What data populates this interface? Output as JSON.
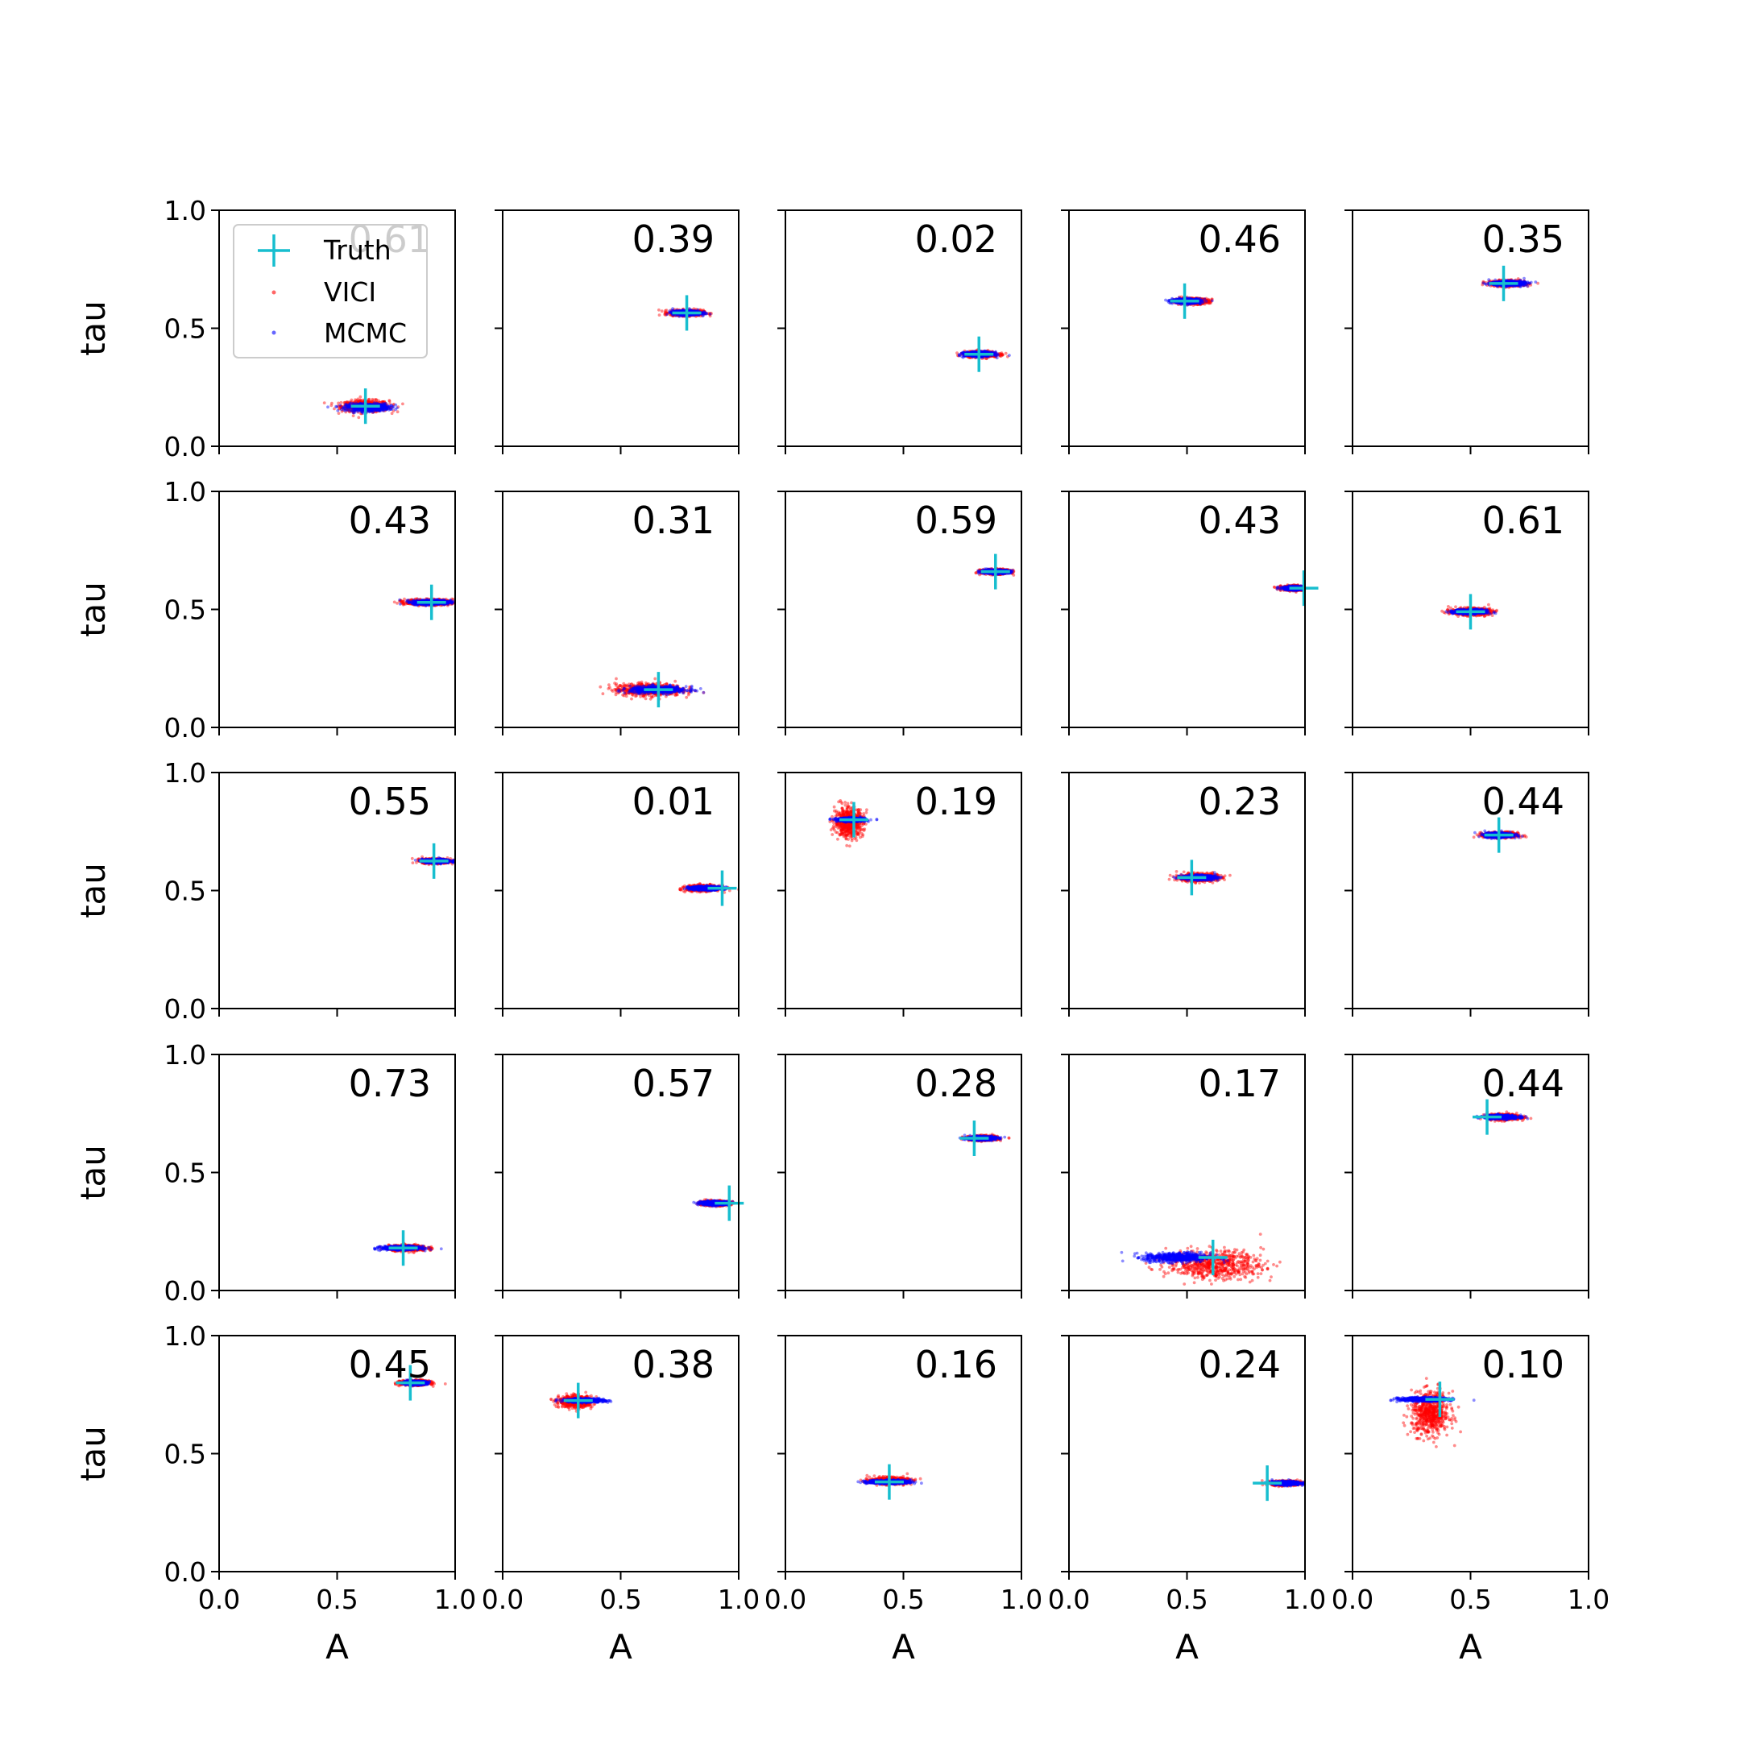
{
  "figure": {
    "background": "#ffffff",
    "colors": {
      "truth": "#17becf",
      "vici": "#ff0000",
      "mcmc": "#0000ff",
      "axes": "#000000"
    },
    "legend": {
      "location": "top-left of first panel",
      "entries": [
        "Truth",
        "VICI",
        "MCMC"
      ]
    }
  },
  "chart_data": [
    {
      "type": "scatter",
      "row": 0,
      "col": 0,
      "annotation": "0.61",
      "truth": {
        "A": 0.62,
        "tau": 0.17
      },
      "vici": {
        "A": 0.62,
        "tau": 0.17,
        "sA": 0.05,
        "sTau": 0.012
      },
      "mcmc": {
        "A": 0.63,
        "tau": 0.165,
        "sA": 0.045,
        "sTau": 0.008
      },
      "xlabel": "",
      "ylabel": "tau",
      "xlim": [
        0,
        1
      ],
      "ylim": [
        0,
        1
      ],
      "xticks": [
        "",
        "",
        ""
      ],
      "yticks": [
        "0.0",
        "0.5",
        "1.0"
      ]
    },
    {
      "type": "scatter",
      "row": 0,
      "col": 1,
      "annotation": "0.39",
      "truth": {
        "A": 0.78,
        "tau": 0.565
      },
      "vici": {
        "A": 0.78,
        "tau": 0.565,
        "sA": 0.035,
        "sTau": 0.006
      },
      "mcmc": {
        "A": 0.78,
        "tau": 0.565,
        "sA": 0.03,
        "sTau": 0.005
      },
      "xlabel": "",
      "ylabel": "",
      "xlim": [
        0,
        1
      ],
      "ylim": [
        0,
        1
      ],
      "xticks": [
        "",
        "",
        ""
      ],
      "yticks": [
        "",
        "",
        ""
      ]
    },
    {
      "type": "scatter",
      "row": 0,
      "col": 2,
      "annotation": "0.02",
      "truth": {
        "A": 0.82,
        "tau": 0.39
      },
      "vici": {
        "A": 0.83,
        "tau": 0.39,
        "sA": 0.035,
        "sTau": 0.006
      },
      "mcmc": {
        "A": 0.82,
        "tau": 0.39,
        "sA": 0.03,
        "sTau": 0.005
      },
      "xlabel": "",
      "ylabel": "",
      "xlim": [
        0,
        1
      ],
      "ylim": [
        0,
        1
      ],
      "xticks": [
        "",
        "",
        ""
      ],
      "yticks": [
        "",
        "",
        ""
      ]
    },
    {
      "type": "scatter",
      "row": 0,
      "col": 3,
      "annotation": "0.46",
      "truth": {
        "A": 0.49,
        "tau": 0.615
      },
      "vici": {
        "A": 0.52,
        "tau": 0.615,
        "sA": 0.035,
        "sTau": 0.006
      },
      "mcmc": {
        "A": 0.5,
        "tau": 0.615,
        "sA": 0.03,
        "sTau": 0.005
      },
      "xlabel": "",
      "ylabel": "",
      "xlim": [
        0,
        1
      ],
      "ylim": [
        0,
        1
      ],
      "xticks": [
        "",
        "",
        ""
      ],
      "yticks": [
        "",
        "",
        ""
      ]
    },
    {
      "type": "scatter",
      "row": 0,
      "col": 4,
      "annotation": "0.35",
      "truth": {
        "A": 0.64,
        "tau": 0.69
      },
      "vici": {
        "A": 0.66,
        "tau": 0.69,
        "sA": 0.035,
        "sTau": 0.006
      },
      "mcmc": {
        "A": 0.66,
        "tau": 0.69,
        "sA": 0.035,
        "sTau": 0.005
      },
      "xlabel": "",
      "ylabel": "",
      "xlim": [
        0,
        1
      ],
      "ylim": [
        0,
        1
      ],
      "xticks": [
        "",
        "",
        ""
      ],
      "yticks": [
        "",
        "",
        ""
      ]
    },
    {
      "type": "scatter",
      "row": 1,
      "col": 0,
      "annotation": "0.43",
      "truth": {
        "A": 0.9,
        "tau": 0.53
      },
      "vici": {
        "A": 0.89,
        "tau": 0.53,
        "sA": 0.05,
        "sTau": 0.006
      },
      "mcmc": {
        "A": 0.9,
        "tau": 0.53,
        "sA": 0.04,
        "sTau": 0.005
      },
      "xlabel": "",
      "ylabel": "tau",
      "xlim": [
        0,
        1
      ],
      "ylim": [
        0,
        1
      ],
      "xticks": [
        "",
        "",
        ""
      ],
      "yticks": [
        "0.0",
        "0.5",
        "1.0"
      ]
    },
    {
      "type": "scatter",
      "row": 1,
      "col": 1,
      "annotation": "0.31",
      "truth": {
        "A": 0.66,
        "tau": 0.16
      },
      "vici": {
        "A": 0.62,
        "tau": 0.16,
        "sA": 0.07,
        "sTau": 0.013
      },
      "mcmc": {
        "A": 0.66,
        "tau": 0.16,
        "sA": 0.06,
        "sTau": 0.007
      },
      "xlabel": "",
      "ylabel": "",
      "xlim": [
        0,
        1
      ],
      "ylim": [
        0,
        1
      ],
      "xticks": [
        "",
        "",
        ""
      ],
      "yticks": [
        "",
        "",
        ""
      ]
    },
    {
      "type": "scatter",
      "row": 1,
      "col": 2,
      "annotation": "0.59",
      "truth": {
        "A": 0.89,
        "tau": 0.66
      },
      "vici": {
        "A": 0.89,
        "tau": 0.66,
        "sA": 0.03,
        "sTau": 0.005
      },
      "mcmc": {
        "A": 0.89,
        "tau": 0.66,
        "sA": 0.03,
        "sTau": 0.004
      },
      "xlabel": "",
      "ylabel": "",
      "xlim": [
        0,
        1
      ],
      "ylim": [
        0,
        1
      ],
      "xticks": [
        "",
        "",
        ""
      ],
      "yticks": [
        "",
        "",
        ""
      ]
    },
    {
      "type": "scatter",
      "row": 1,
      "col": 3,
      "annotation": "0.43",
      "truth": {
        "A": 0.995,
        "tau": 0.59
      },
      "vici": {
        "A": 0.96,
        "tau": 0.59,
        "sA": 0.03,
        "sTau": 0.005
      },
      "mcmc": {
        "A": 0.96,
        "tau": 0.59,
        "sA": 0.025,
        "sTau": 0.004
      },
      "xlabel": "",
      "ylabel": "",
      "xlim": [
        0,
        1
      ],
      "ylim": [
        0,
        1
      ],
      "xticks": [
        "",
        "",
        ""
      ],
      "yticks": [
        "",
        "",
        ""
      ]
    },
    {
      "type": "scatter",
      "row": 1,
      "col": 4,
      "annotation": "0.61",
      "truth": {
        "A": 0.5,
        "tau": 0.49
      },
      "vici": {
        "A": 0.5,
        "tau": 0.49,
        "sA": 0.04,
        "sTau": 0.007
      },
      "mcmc": {
        "A": 0.5,
        "tau": 0.49,
        "sA": 0.035,
        "sTau": 0.005
      },
      "xlabel": "",
      "ylabel": "",
      "xlim": [
        0,
        1
      ],
      "ylim": [
        0,
        1
      ],
      "xticks": [
        "",
        "",
        ""
      ],
      "yticks": [
        "",
        "",
        ""
      ]
    },
    {
      "type": "scatter",
      "row": 2,
      "col": 0,
      "annotation": "0.55",
      "truth": {
        "A": 0.91,
        "tau": 0.625
      },
      "vici": {
        "A": 0.92,
        "tau": 0.625,
        "sA": 0.03,
        "sTau": 0.005
      },
      "mcmc": {
        "A": 0.92,
        "tau": 0.625,
        "sA": 0.03,
        "sTau": 0.004
      },
      "xlabel": "",
      "ylabel": "tau",
      "xlim": [
        0,
        1
      ],
      "ylim": [
        0,
        1
      ],
      "xticks": [
        "",
        "",
        ""
      ],
      "yticks": [
        "0.0",
        "0.5",
        "1.0"
      ]
    },
    {
      "type": "scatter",
      "row": 2,
      "col": 1,
      "annotation": "0.01",
      "truth": {
        "A": 0.93,
        "tau": 0.51
      },
      "vici": {
        "A": 0.85,
        "tau": 0.51,
        "sA": 0.035,
        "sTau": 0.006
      },
      "mcmc": {
        "A": 0.86,
        "tau": 0.51,
        "sA": 0.035,
        "sTau": 0.004
      },
      "xlabel": "",
      "ylabel": "",
      "xlim": [
        0,
        1
      ],
      "ylim": [
        0,
        1
      ],
      "xticks": [
        "",
        "",
        ""
      ],
      "yticks": [
        "",
        "",
        ""
      ]
    },
    {
      "type": "scatter",
      "row": 2,
      "col": 2,
      "annotation": "0.19",
      "truth": {
        "A": 0.29,
        "tau": 0.8
      },
      "vici": {
        "A": 0.27,
        "tau": 0.79,
        "sA": 0.03,
        "sTau": 0.03
      },
      "mcmc": {
        "A": 0.28,
        "tau": 0.8,
        "sA": 0.03,
        "sTau": 0.004
      },
      "xlabel": "",
      "ylabel": "",
      "xlim": [
        0,
        1
      ],
      "ylim": [
        0,
        1
      ],
      "xticks": [
        "",
        "",
        ""
      ],
      "yticks": [
        "",
        "",
        ""
      ]
    },
    {
      "type": "scatter",
      "row": 2,
      "col": 3,
      "annotation": "0.23",
      "truth": {
        "A": 0.52,
        "tau": 0.555
      },
      "vici": {
        "A": 0.55,
        "tau": 0.555,
        "sA": 0.04,
        "sTau": 0.008
      },
      "mcmc": {
        "A": 0.55,
        "tau": 0.555,
        "sA": 0.035,
        "sTau": 0.005
      },
      "xlabel": "",
      "ylabel": "",
      "xlim": [
        0,
        1
      ],
      "ylim": [
        0,
        1
      ],
      "xticks": [
        "",
        "",
        ""
      ],
      "yticks": [
        "",
        "",
        ""
      ]
    },
    {
      "type": "scatter",
      "row": 2,
      "col": 4,
      "annotation": "0.44",
      "truth": {
        "A": 0.62,
        "tau": 0.735
      },
      "vici": {
        "A": 0.63,
        "tau": 0.735,
        "sA": 0.035,
        "sTau": 0.006
      },
      "mcmc": {
        "A": 0.62,
        "tau": 0.735,
        "sA": 0.03,
        "sTau": 0.005
      },
      "xlabel": "",
      "ylabel": "",
      "xlim": [
        0,
        1
      ],
      "ylim": [
        0,
        1
      ],
      "xticks": [
        "",
        "",
        ""
      ],
      "yticks": [
        "",
        "",
        ""
      ]
    },
    {
      "type": "scatter",
      "row": 3,
      "col": 0,
      "annotation": "0.73",
      "truth": {
        "A": 0.78,
        "tau": 0.18
      },
      "vici": {
        "A": 0.8,
        "tau": 0.18,
        "sA": 0.04,
        "sTau": 0.006
      },
      "mcmc": {
        "A": 0.77,
        "tau": 0.18,
        "sA": 0.04,
        "sTau": 0.004
      },
      "xlabel": "",
      "ylabel": "tau",
      "xlim": [
        0,
        1
      ],
      "ylim": [
        0,
        1
      ],
      "xticks": [
        "",
        "",
        ""
      ],
      "yticks": [
        "0.0",
        "0.5",
        "1.0"
      ]
    },
    {
      "type": "scatter",
      "row": 3,
      "col": 1,
      "annotation": "0.57",
      "truth": {
        "A": 0.96,
        "tau": 0.37
      },
      "vici": {
        "A": 0.9,
        "tau": 0.37,
        "sA": 0.03,
        "sTau": 0.005
      },
      "mcmc": {
        "A": 0.9,
        "tau": 0.37,
        "sA": 0.03,
        "sTau": 0.004
      },
      "xlabel": "",
      "ylabel": "",
      "xlim": [
        0,
        1
      ],
      "ylim": [
        0,
        1
      ],
      "xticks": [
        "",
        "",
        ""
      ],
      "yticks": [
        "",
        "",
        ""
      ]
    },
    {
      "type": "scatter",
      "row": 3,
      "col": 2,
      "annotation": "0.28",
      "truth": {
        "A": 0.8,
        "tau": 0.645
      },
      "vici": {
        "A": 0.84,
        "tau": 0.645,
        "sA": 0.03,
        "sTau": 0.005
      },
      "mcmc": {
        "A": 0.83,
        "tau": 0.645,
        "sA": 0.03,
        "sTau": 0.004
      },
      "xlabel": "",
      "ylabel": "",
      "xlim": [
        0,
        1
      ],
      "ylim": [
        0,
        1
      ],
      "xticks": [
        "",
        "",
        ""
      ],
      "yticks": [
        "",
        "",
        ""
      ]
    },
    {
      "type": "scatter",
      "row": 3,
      "col": 3,
      "annotation": "0.17",
      "truth": {
        "A": 0.61,
        "tau": 0.14
      },
      "vici": {
        "A": 0.62,
        "tau": 0.11,
        "sA": 0.1,
        "sTau": 0.03
      },
      "mcmc": {
        "A": 0.46,
        "tau": 0.14,
        "sA": 0.07,
        "sTau": 0.01
      },
      "xlabel": "",
      "ylabel": "",
      "xlim": [
        0,
        1
      ],
      "ylim": [
        0,
        1
      ],
      "xticks": [
        "",
        "",
        ""
      ],
      "yticks": [
        "",
        "",
        ""
      ]
    },
    {
      "type": "scatter",
      "row": 3,
      "col": 4,
      "annotation": "0.44",
      "truth": {
        "A": 0.57,
        "tau": 0.735
      },
      "vici": {
        "A": 0.64,
        "tau": 0.735,
        "sA": 0.035,
        "sTau": 0.006
      },
      "mcmc": {
        "A": 0.63,
        "tau": 0.735,
        "sA": 0.035,
        "sTau": 0.004
      },
      "xlabel": "",
      "ylabel": "",
      "xlim": [
        0,
        1
      ],
      "ylim": [
        0,
        1
      ],
      "xticks": [
        "",
        "",
        ""
      ],
      "yticks": [
        "",
        "",
        ""
      ]
    },
    {
      "type": "scatter",
      "row": 4,
      "col": 0,
      "annotation": "0.45",
      "truth": {
        "A": 0.81,
        "tau": 0.8
      },
      "vici": {
        "A": 0.83,
        "tau": 0.8,
        "sA": 0.03,
        "sTau": 0.005
      },
      "mcmc": {
        "A": 0.83,
        "tau": 0.8,
        "sA": 0.025,
        "sTau": 0.004
      },
      "xlabel": "A",
      "ylabel": "tau",
      "xlim": [
        0,
        1
      ],
      "ylim": [
        0,
        1
      ],
      "xticks": [
        "0.0",
        "0.5",
        "1.0"
      ],
      "yticks": [
        "0.0",
        "0.5",
        "1.0"
      ]
    },
    {
      "type": "scatter",
      "row": 4,
      "col": 1,
      "annotation": "0.38",
      "truth": {
        "A": 0.32,
        "tau": 0.725
      },
      "vici": {
        "A": 0.31,
        "tau": 0.72,
        "sA": 0.035,
        "sTau": 0.012
      },
      "mcmc": {
        "A": 0.35,
        "tau": 0.725,
        "sA": 0.04,
        "sTau": 0.004
      },
      "xlabel": "A",
      "ylabel": "",
      "xlim": [
        0,
        1
      ],
      "ylim": [
        0,
        1
      ],
      "xticks": [
        "0.0",
        "0.5",
        "1.0"
      ],
      "yticks": [
        "",
        "",
        ""
      ]
    },
    {
      "type": "scatter",
      "row": 4,
      "col": 2,
      "annotation": "0.16",
      "truth": {
        "A": 0.44,
        "tau": 0.38
      },
      "vici": {
        "A": 0.44,
        "tau": 0.385,
        "sA": 0.04,
        "sTau": 0.007
      },
      "mcmc": {
        "A": 0.44,
        "tau": 0.38,
        "sA": 0.045,
        "sTau": 0.004
      },
      "xlabel": "A",
      "ylabel": "",
      "xlim": [
        0,
        1
      ],
      "ylim": [
        0,
        1
      ],
      "xticks": [
        "0.0",
        "0.5",
        "1.0"
      ],
      "yticks": [
        "",
        "",
        ""
      ]
    },
    {
      "type": "scatter",
      "row": 4,
      "col": 3,
      "annotation": "0.24",
      "truth": {
        "A": 0.84,
        "tau": 0.375
      },
      "vici": {
        "A": 0.92,
        "tau": 0.375,
        "sA": 0.03,
        "sTau": 0.005
      },
      "mcmc": {
        "A": 0.92,
        "tau": 0.375,
        "sA": 0.03,
        "sTau": 0.004
      },
      "xlabel": "A",
      "ylabel": "",
      "xlim": [
        0,
        1
      ],
      "ylim": [
        0,
        1
      ],
      "xticks": [
        "0.0",
        "0.5",
        "1.0"
      ],
      "yticks": [
        "",
        "",
        ""
      ]
    },
    {
      "type": "scatter",
      "row": 4,
      "col": 4,
      "annotation": "0.10",
      "truth": {
        "A": 0.37,
        "tau": 0.73
      },
      "vici": {
        "A": 0.33,
        "tau": 0.67,
        "sA": 0.04,
        "sTau": 0.045
      },
      "mcmc": {
        "A": 0.3,
        "tau": 0.73,
        "sA": 0.05,
        "sTau": 0.004
      },
      "xlabel": "A",
      "ylabel": "",
      "xlim": [
        0,
        1
      ],
      "ylim": [
        0,
        1
      ],
      "xticks": [
        "0.0",
        "0.5",
        "1.0"
      ],
      "yticks": [
        "",
        "",
        ""
      ]
    }
  ]
}
